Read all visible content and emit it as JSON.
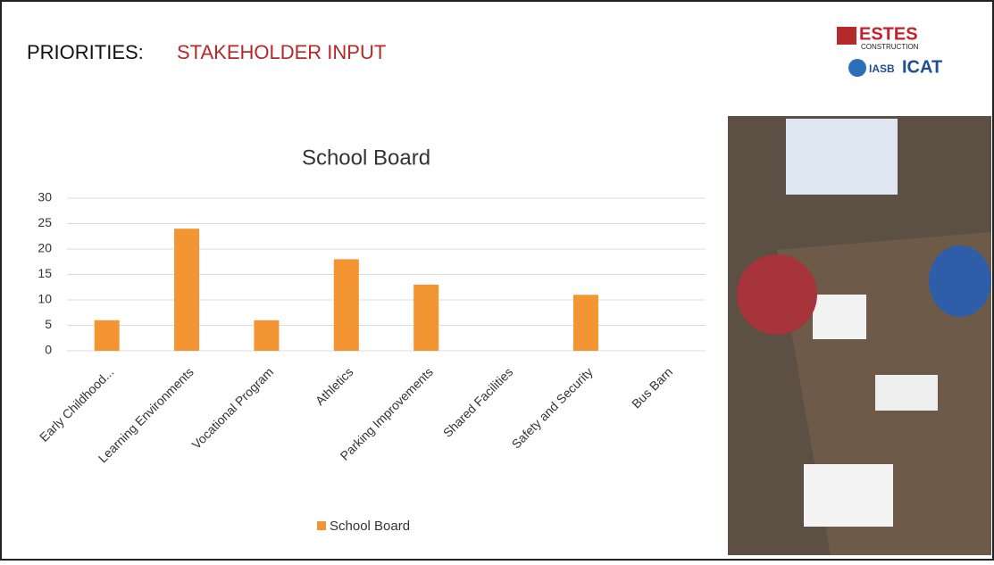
{
  "header": {
    "title_lead": "PRIORITIES:",
    "title_rest": "STAKEHOLDER INPUT"
  },
  "logos": {
    "estes": "ESTES",
    "estes_sub": "CONSTRUCTION",
    "iasb": "IASB",
    "icat": "ICAT"
  },
  "chart_data": {
    "type": "bar",
    "title": "School Board",
    "categories": [
      "Early Childhood...",
      "Learning Environments",
      "Vocational Program",
      "Athletics",
      "Parking Improvements",
      "Shared Facilities",
      "Safety and Security",
      "Bus Barn"
    ],
    "series": [
      {
        "name": "School Board",
        "color": "#f39532",
        "values": [
          6,
          24,
          6,
          18,
          13,
          0,
          11,
          0
        ]
      }
    ],
    "ylim": [
      0,
      30
    ],
    "yticks": [
      0,
      5,
      10,
      15,
      20,
      25,
      30
    ],
    "grid": true,
    "legend": "bottom"
  }
}
